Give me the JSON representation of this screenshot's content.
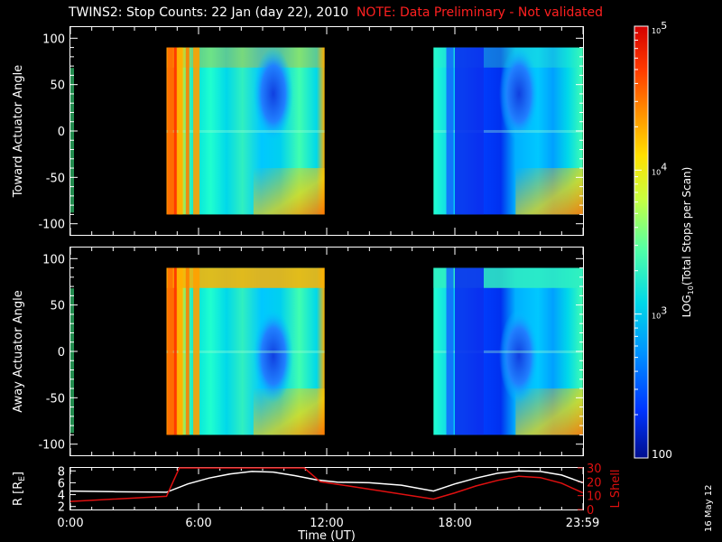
{
  "title": {
    "main": "TWINS2: Stop Counts: 22 Jan (day  22), 2010",
    "note": "NOTE: Data Preliminary - Not validated"
  },
  "date_stamp": "16 May 12",
  "colors": {
    "background": "#000000",
    "note_text": "#ff2020",
    "r_line": "#ffffff",
    "lshell_line": "#e01010",
    "axis": "#ffffff"
  },
  "chart_data": [
    {
      "type": "heatmap",
      "panel": "top",
      "ylabel": "Toward Actuator Angle",
      "ylim": [
        -112,
        112
      ],
      "yticks": [
        "100",
        "50",
        "0",
        "-50",
        "-100"
      ],
      "data_extent_y": [
        -90,
        90
      ],
      "x_range_hours": [
        0,
        24
      ],
      "data_intervals_hours": [
        [
          4.5,
          11.9
        ],
        [
          17.0,
          23.99
        ]
      ],
      "features": "bands across angle; blue (low counts) region near 9-10h at angles 10-70; orange/red (high counts) strips near 4.5-5.5h and near high angles after 11h"
    },
    {
      "type": "heatmap",
      "panel": "middle",
      "ylabel": "Away Actuator Angle",
      "ylim": [
        -112,
        112
      ],
      "yticks": [
        "100",
        "50",
        "0",
        "-50",
        "-100"
      ],
      "data_extent_y": [
        -90,
        90
      ],
      "x_range_hours": [
        0,
        24
      ],
      "data_intervals_hours": [
        [
          4.5,
          11.9
        ],
        [
          17.0,
          23.99
        ]
      ],
      "features": "similar to top panel; blue region near 9-10h centered around 0 angle"
    },
    {
      "type": "line",
      "panel": "bottom",
      "ylabel_left": "R [R",
      "ylabel_left_sub": "E",
      "ylabel_left_close": "]",
      "ylabel_right": "L Shell",
      "left_ylim": [
        1.5,
        8.5
      ],
      "left_yticks": [
        "8",
        "6",
        "4",
        "2"
      ],
      "right_ylim": [
        0,
        30
      ],
      "right_yticks": [
        "30",
        "20",
        "10",
        "0"
      ],
      "xlabel": "Time (UT)",
      "xticks": [
        "0:00",
        "6:00",
        "12:00",
        "18:00",
        "23:59"
      ],
      "xtick_hours": [
        0,
        6,
        12,
        18,
        23.98
      ],
      "series": [
        {
          "name": "R [RE]",
          "axis": "left",
          "x": [
            0,
            2,
            4.5,
            5.5,
            6.5,
            7.5,
            8.5,
            9.5,
            10.5,
            11.5,
            12.5,
            14,
            15.5,
            17,
            18,
            19,
            20,
            21,
            22,
            23,
            23.99
          ],
          "y": [
            4.6,
            4.5,
            4.4,
            5.8,
            6.8,
            7.5,
            7.9,
            7.8,
            7.2,
            6.5,
            6.1,
            6.0,
            5.6,
            4.6,
            5.8,
            6.8,
            7.6,
            8.0,
            7.9,
            7.3,
            6.0
          ]
        },
        {
          "name": "L Shell",
          "axis": "right",
          "x": [
            0,
            4.5,
            5.1,
            10.95,
            11.7,
            13,
            17,
            18,
            19,
            20,
            21,
            22,
            23,
            23.99
          ],
          "y": [
            5.8,
            9.5,
            30,
            30,
            20,
            17,
            7.5,
            12,
            17,
            21,
            24,
            23,
            19,
            12
          ]
        }
      ]
    }
  ],
  "colorbar": {
    "label_prefix": "LOG",
    "label_sub": "10",
    "label_suffix": "(Total Stops per Scan)",
    "tick_labels": [
      {
        "base": "10",
        "exp": "5"
      },
      {
        "base": "10",
        "exp": "4"
      },
      {
        "base": "10",
        "exp": "3"
      },
      {
        "base": "100",
        "exp": ""
      }
    ],
    "log_range": [
      2,
      5
    ],
    "colormap": [
      "#000f8e",
      "#0034ff",
      "#0090ff",
      "#00d8e8",
      "#50ffa8",
      "#c8ff40",
      "#ffe000",
      "#ff9000",
      "#ff3a00",
      "#d40000"
    ]
  }
}
